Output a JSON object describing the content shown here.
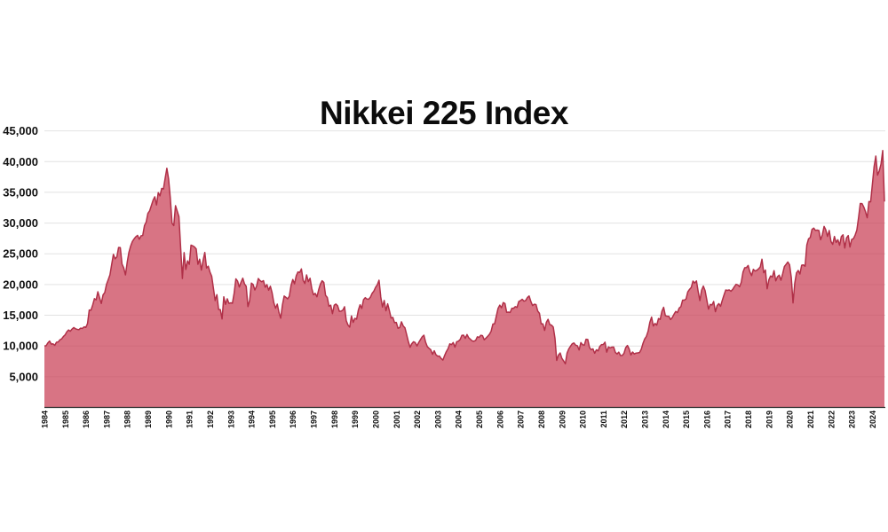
{
  "title": "Nikkei 225 Index",
  "colors": {
    "background": "#ffffff",
    "area_fill": "#c93e54",
    "area_fill_opacity": 0.72,
    "area_line": "#b03048",
    "gridline": "#e2e2e2",
    "axis_line": "#2b2b2b",
    "text": "#111111"
  },
  "chart_data": {
    "type": "area",
    "title": "Nikkei 225 Index",
    "frequency": "monthly",
    "start": "1984-01",
    "end": "2024-08",
    "xlabel": "",
    "ylabel": "",
    "ylim": [
      0,
      45000
    ],
    "grid": "horizontal",
    "legend": "none",
    "y_ticks": [
      5000,
      10000,
      15000,
      20000,
      25000,
      30000,
      35000,
      40000,
      45000
    ],
    "y_tick_labels": [
      "5,000",
      "10,000",
      "15,000",
      "20,000",
      "25,000",
      "30,000",
      "35,000",
      "40,000",
      "45,000"
    ],
    "x_tick_labels": [
      "1984",
      "1985",
      "1986",
      "1987",
      "1988",
      "1989",
      "1990",
      "1991",
      "1992",
      "1993",
      "1994",
      "1995",
      "1996",
      "1997",
      "1998",
      "1999",
      "2000",
      "2001",
      "2002",
      "2003",
      "2004",
      "2005",
      "2006",
      "2007",
      "2008",
      "2009",
      "2010",
      "2011",
      "2012",
      "2013",
      "2014",
      "2015",
      "2016",
      "2017",
      "2018",
      "2019",
      "2020",
      "2021",
      "2022",
      "2023",
      "2024"
    ],
    "points_per_year": 12,
    "series": [
      {
        "name": "Nikkei 225",
        "values": [
          10000,
          10050,
          10500,
          10800,
          10300,
          10350,
          10100,
          10600,
          10650,
          11000,
          11150,
          11540,
          11800,
          12300,
          12600,
          12400,
          12750,
          13000,
          12800,
          12700,
          12650,
          12900,
          12850,
          13110,
          13020,
          13640,
          15850,
          15820,
          16670,
          17700,
          17510,
          18820,
          17850,
          16910,
          18320,
          18700,
          20020,
          20770,
          21570,
          23270,
          24900,
          24180,
          24490,
          26030,
          26010,
          23330,
          22690,
          21560,
          23620,
          25240,
          26260,
          27000,
          27420,
          27770,
          28000,
          27370,
          27920,
          27980,
          29580,
          30160,
          31580,
          31980,
          32840,
          33710,
          34270,
          32950,
          34950,
          34430,
          35640,
          35550,
          37270,
          38920,
          37190,
          34100,
          29980,
          29590,
          32820,
          31940,
          31040,
          25940,
          20980,
          25190,
          22450,
          23850,
          23290,
          26410,
          26290,
          26110,
          25790,
          23290,
          24120,
          22340,
          23920,
          25220,
          22690,
          22980,
          22020,
          21340,
          19350,
          17390,
          18350,
          15950,
          15910,
          14400,
          18000,
          16770,
          17680,
          16930,
          17020,
          16950,
          18590,
          20920,
          20550,
          19590,
          20380,
          21030,
          20110,
          19700,
          16410,
          17420,
          20230,
          20000,
          19110,
          19730,
          20970,
          20640,
          20450,
          20630,
          19560,
          19990,
          19070,
          19720,
          18650,
          17050,
          16140,
          16810,
          15440,
          14520,
          16680,
          18120,
          17910,
          17660,
          18110,
          19870,
          20810,
          20120,
          21410,
          22040,
          21960,
          22530,
          20690,
          20170,
          21560,
          20470,
          21020,
          19360,
          18330,
          18560,
          18000,
          19150,
          20070,
          20610,
          20330,
          18230,
          17890,
          16460,
          16640,
          15260,
          16630,
          16830,
          16530,
          15640,
          15670,
          15830,
          16380,
          14110,
          13410,
          13070,
          14880,
          13840,
          14500,
          14370,
          15840,
          16700,
          16110,
          17530,
          17860,
          17630,
          17610,
          17940,
          18560,
          18930,
          19540,
          19960,
          20700,
          17970,
          16330,
          17410,
          15730,
          16860,
          15750,
          14540,
          14650,
          13790,
          13840,
          12880,
          13000,
          13930,
          13260,
          12970,
          11860,
          10710,
          9780,
          10370,
          10700,
          10540,
          10000,
          10570,
          11030,
          11490,
          11760,
          10620,
          9880,
          9620,
          9380,
          8640,
          9220,
          8580,
          8340,
          8360,
          7970,
          7700,
          8430,
          9080,
          9560,
          10340,
          10220,
          10560,
          9810,
          10680,
          10780,
          11040,
          11720,
          11760,
          11240,
          11860,
          11330,
          11080,
          10820,
          10770,
          10900,
          11490,
          11390,
          11740,
          11670,
          11010,
          11280,
          11580,
          11900,
          12410,
          13570,
          13610,
          14870,
          16110,
          16650,
          16210,
          17060,
          16910,
          15470,
          15510,
          15460,
          16140,
          16130,
          16400,
          16270,
          17230,
          17380,
          17600,
          17290,
          17400,
          17880,
          18140,
          17250,
          16570,
          16790,
          16740,
          15680,
          15310,
          13590,
          13600,
          12530,
          13850,
          14340,
          13480,
          13380,
          13070,
          11260,
          7650,
          8510,
          8860,
          7990,
          7570,
          7100,
          8830,
          9520,
          9960,
          10360,
          10490,
          10130,
          10040,
          9350,
          10550,
          10200,
          10130,
          11090,
          11060,
          9770,
          9380,
          9540,
          8820,
          9370,
          9200,
          9940,
          10230,
          10240,
          10620,
          9000,
          9850,
          9690,
          9820,
          9830,
          8960,
          8700,
          8990,
          8440,
          8460,
          8800,
          9720,
          10080,
          9520,
          8540,
          9010,
          8700,
          8840,
          8870,
          8930,
          9450,
          10400,
          11140,
          11560,
          12400,
          13860,
          14700,
          13250,
          13670,
          13390,
          14460,
          14330,
          15660,
          16290,
          14920,
          14840,
          14830,
          14300,
          14630,
          15160,
          15620,
          15430,
          16170,
          16410,
          17460,
          17450,
          17670,
          18800,
          19210,
          19520,
          20560,
          20240,
          20590,
          18890,
          17390,
          19080,
          19750,
          19030,
          17520,
          15990,
          16760,
          16670,
          17230,
          15580,
          16570,
          16890,
          16450,
          17430,
          18310,
          19110,
          19040,
          19120,
          18910,
          19200,
          19650,
          20030,
          19930,
          19650,
          20360,
          22010,
          22730,
          22760,
          23100,
          22070,
          21450,
          22470,
          22200,
          22310,
          22550,
          22870,
          24120,
          21920,
          22350,
          19300,
          20770,
          21390,
          21210,
          22260,
          20600,
          21280,
          21520,
          20700,
          21760,
          22930,
          23290,
          23660,
          23210,
          21140,
          17000,
          20190,
          21880,
          22290,
          21710,
          23140,
          23190,
          22980,
          26430,
          27440,
          27660,
          28970,
          29180,
          28810,
          28860,
          28790,
          27280,
          28090,
          29450,
          28890,
          27820,
          28790,
          27000,
          26530,
          27820,
          26850,
          27280,
          26390,
          27800,
          28090,
          25940,
          27590,
          27970,
          26100,
          27330,
          27450,
          28040,
          28860,
          30890,
          33190,
          33170,
          32620,
          31860,
          30860,
          33490,
          33460,
          36290,
          39170,
          40900,
          37800,
          38490,
          39580,
          41800,
          33500
        ]
      }
    ]
  }
}
